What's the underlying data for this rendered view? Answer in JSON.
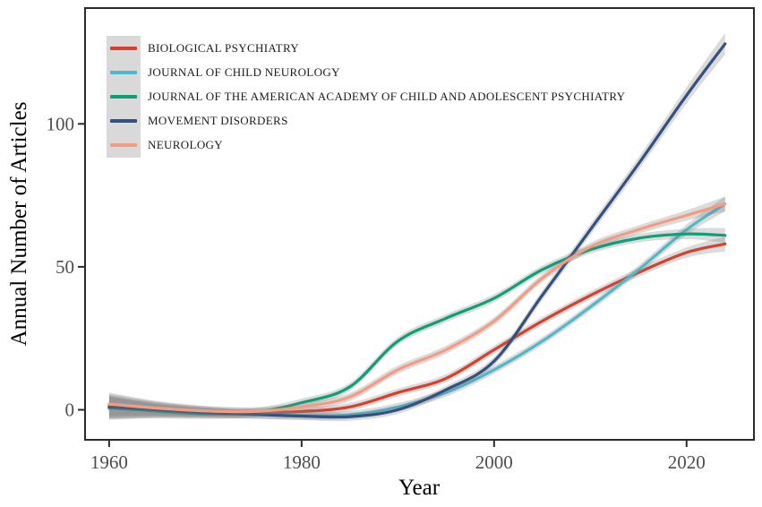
{
  "figure": {
    "y_axis_label": "Annual Number of Articles",
    "x_axis_label": "Year"
  },
  "chart_data": {
    "type": "line",
    "title": "",
    "xlabel": "Year",
    "ylabel": "Annual Number of Articles",
    "grid": false,
    "legend_position": "top-left-inside",
    "smoothing": "loess smoothed trends with shaded confidence ribbons",
    "xlim": [
      1957.5,
      2027
    ],
    "ylim": [
      -10.5,
      140.5
    ],
    "x_ticks": [
      1960,
      1980,
      2000,
      2020
    ],
    "y_ticks": [
      0,
      50,
      100
    ],
    "x": [
      1960,
      1965,
      1970,
      1975,
      1980,
      1985,
      1990,
      1995,
      2000,
      2005,
      2010,
      2015,
      2020,
      2024
    ],
    "ribbon_color": "#7d7d82",
    "ribbon_opacity": 0.28,
    "series": [
      {
        "name": "BIOLOGICAL PSYCHIATRY",
        "color": "#d7402c",
        "values": [
          1.5,
          0.3,
          -0.6,
          -1,
          -0.6,
          1,
          6,
          11,
          21,
          31,
          40,
          48,
          55,
          58
        ],
        "ci": [
          4,
          2.5,
          1.8,
          1.5,
          1.4,
          1.4,
          1.4,
          1.4,
          1.4,
          1.4,
          1.4,
          1.5,
          1.8,
          2.6
        ]
      },
      {
        "name": "JOURNAL OF CHILD NEUROLOGY",
        "color": "#4fb8cb",
        "values": [
          0.5,
          -0.3,
          -1,
          -1.6,
          -2,
          -1.8,
          1,
          6,
          14,
          24,
          36,
          49,
          63,
          72
        ],
        "ci": [
          4,
          2.5,
          1.8,
          1.5,
          1.4,
          1.4,
          1.4,
          1.4,
          1.4,
          1.4,
          1.4,
          1.5,
          1.8,
          2.6
        ]
      },
      {
        "name": "JOURNAL OF THE AMERICAN ACADEMY OF CHILD AND ADOLESCENT PSYCHIATRY",
        "color": "#0f9e78",
        "values": [
          0.8,
          -0.5,
          -1.4,
          -1,
          2.5,
          8,
          24,
          32,
          39,
          49,
          56,
          60,
          61.5,
          61
        ],
        "ci": [
          4,
          2.5,
          1.8,
          1.5,
          1.4,
          1.4,
          1.4,
          1.4,
          1.4,
          1.4,
          1.4,
          1.5,
          1.8,
          2.6
        ]
      },
      {
        "name": "MOVEMENT DISORDERS",
        "color": "#34507e",
        "values": [
          1,
          0,
          -1,
          -1.6,
          -2.2,
          -2.4,
          0,
          7,
          17,
          40,
          63,
          86,
          110,
          128
        ],
        "ci": [
          4,
          2.5,
          1.8,
          1.5,
          1.4,
          1.4,
          1.4,
          1.4,
          1.5,
          1.7,
          1.9,
          2.2,
          2.8,
          3.8
        ]
      },
      {
        "name": "NEUROLOGY",
        "color": "#f59b82",
        "values": [
          2,
          0.6,
          -0.4,
          -0.6,
          1,
          4.5,
          14,
          21,
          31,
          46,
          57,
          63,
          68,
          72
        ],
        "ci": [
          4,
          2.5,
          1.8,
          1.5,
          1.4,
          1.4,
          1.4,
          1.4,
          1.4,
          1.4,
          1.4,
          1.5,
          1.8,
          2.6
        ]
      }
    ]
  },
  "axes": {
    "tick_label_color": "#4d4d4d",
    "panel_border_color": "#2b2b2b",
    "tick_mark_color": "#2b2b2b"
  },
  "legend": {
    "key_background": "#d9d9d9"
  }
}
